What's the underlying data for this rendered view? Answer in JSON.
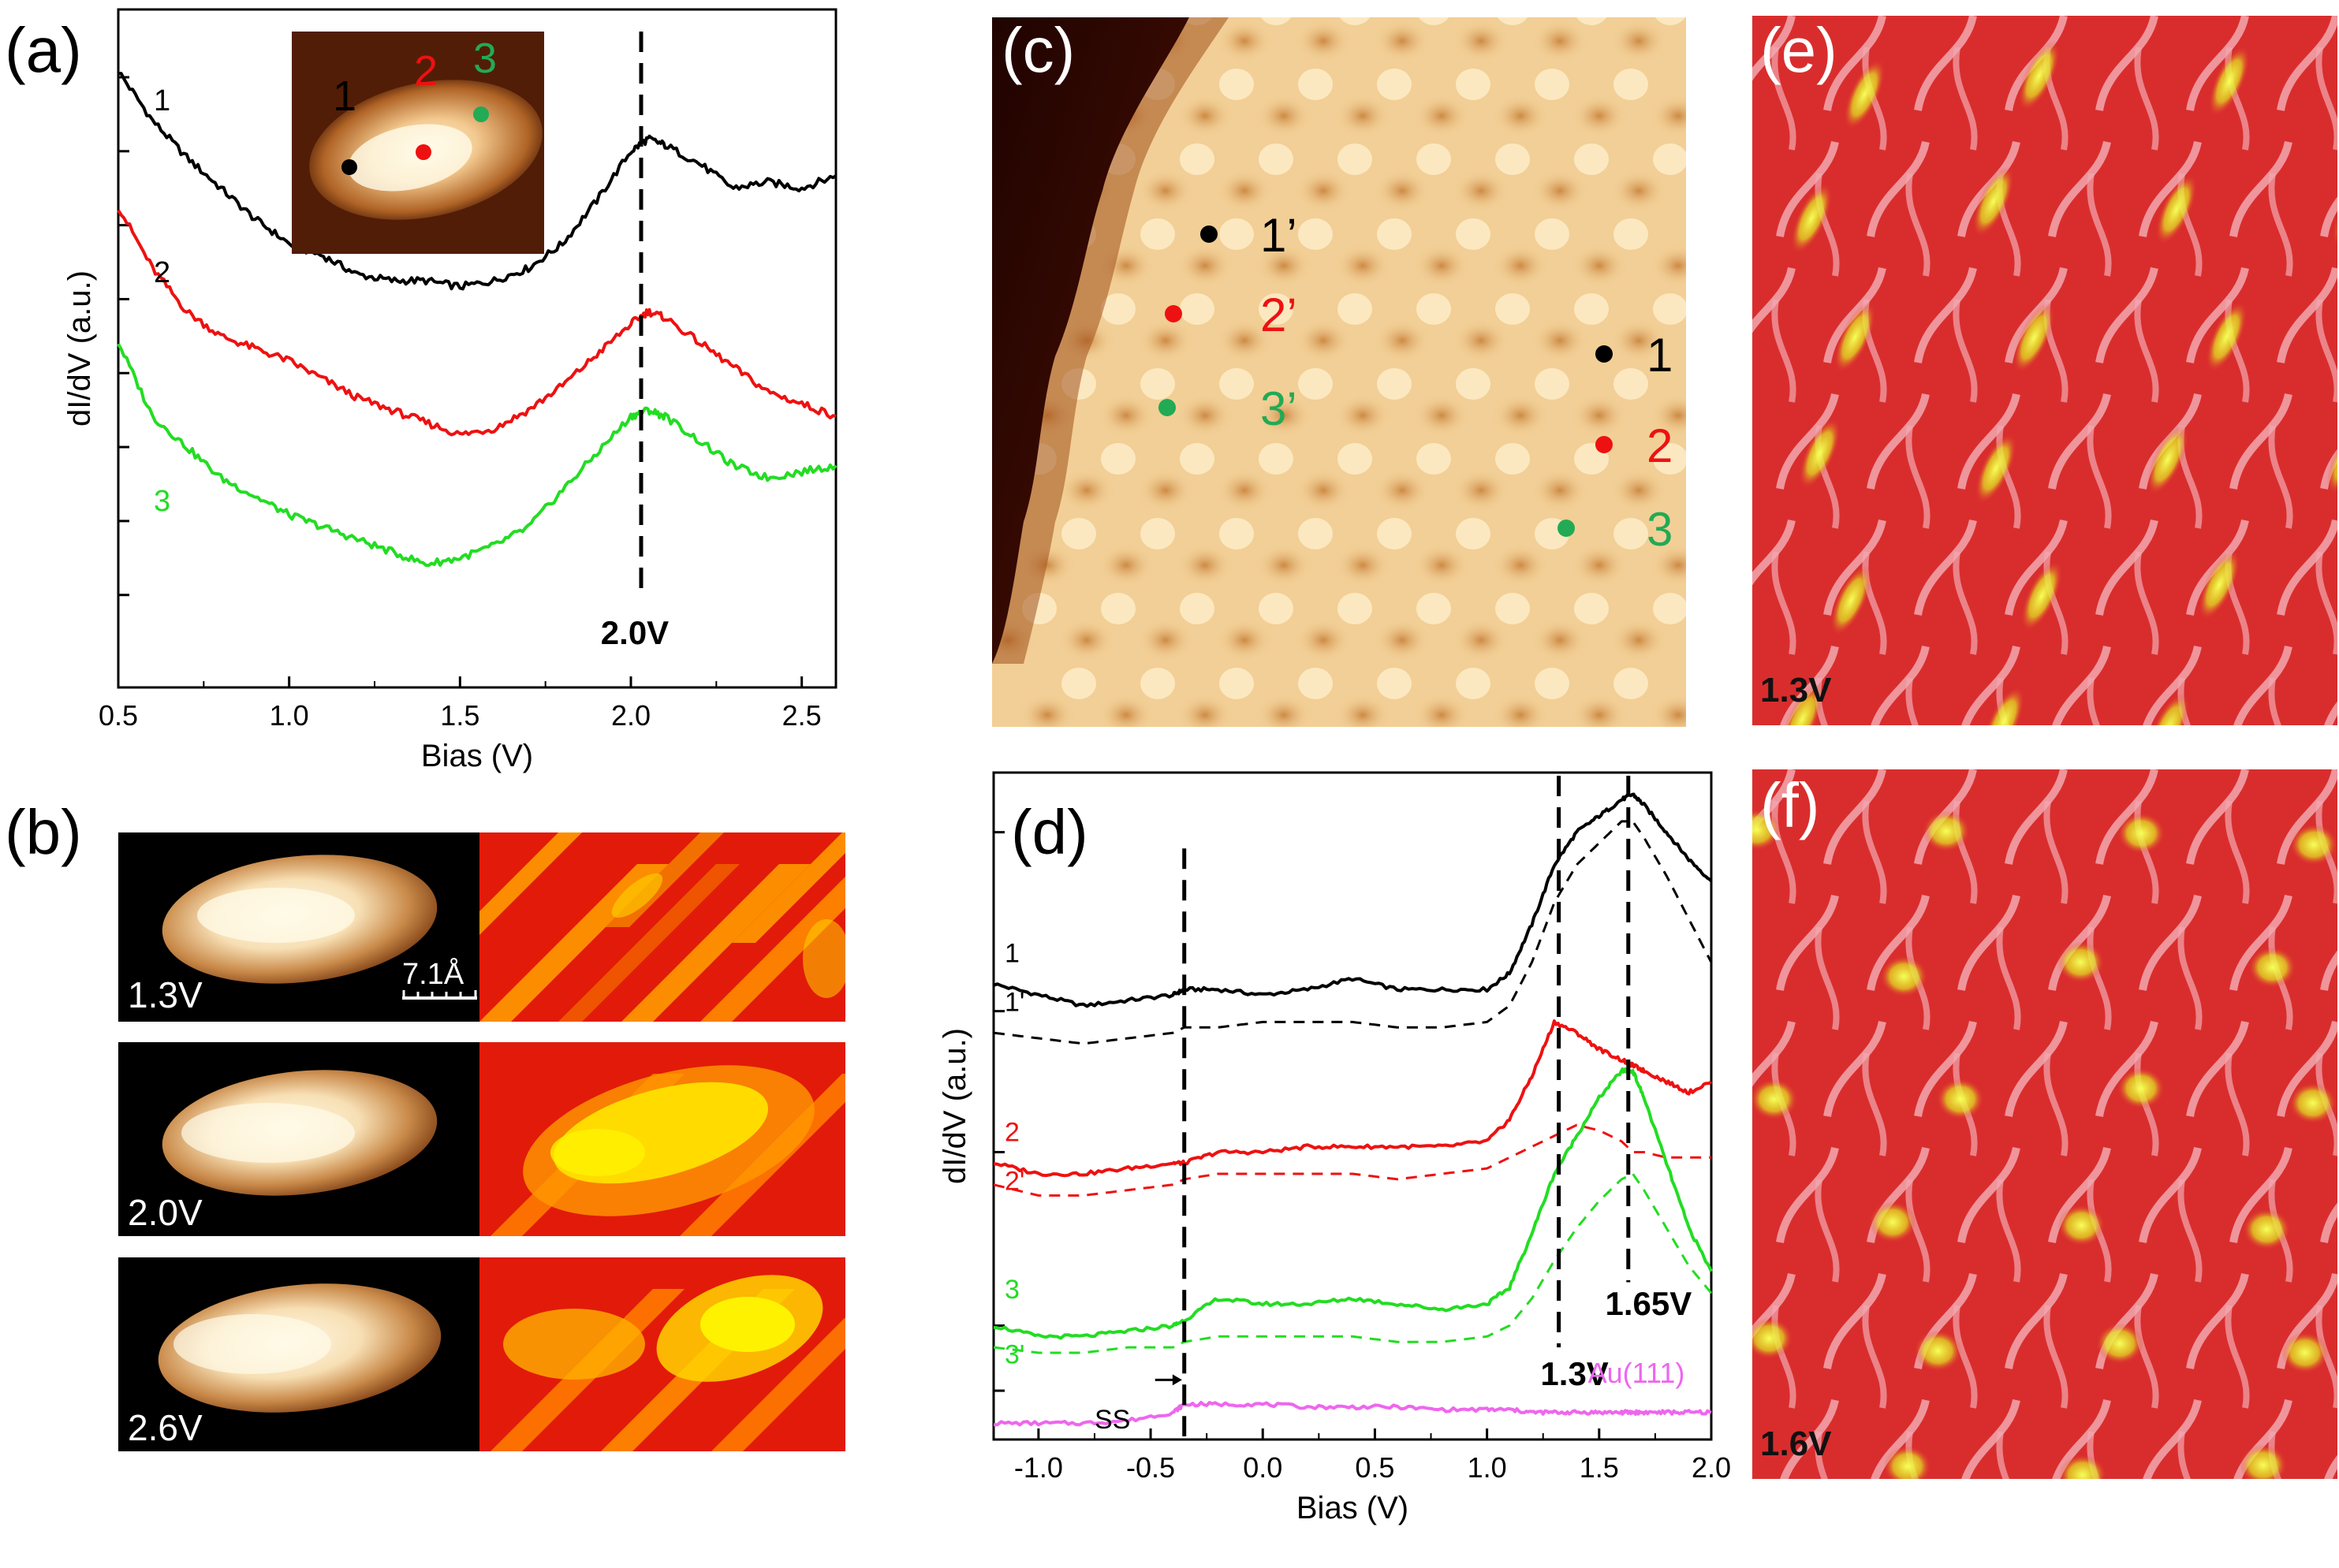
{
  "panels": {
    "a": "(a)",
    "b": "(b)",
    "c": "(c)",
    "d": "(d)",
    "e": "(e)",
    "f": "(f)"
  },
  "panel_a": {
    "curve_labels": [
      "1",
      "2",
      "3"
    ],
    "inset_labels": [
      "1",
      "2",
      "3"
    ],
    "annotation": "2.0V"
  },
  "panel_b": {
    "rows": [
      "1.3V",
      "2.0V",
      "2.6V"
    ],
    "scale_bar": "7.1Å"
  },
  "panel_c": {
    "points": [
      {
        "label": "1’",
        "color": "#000000"
      },
      {
        "label": "2’",
        "color": "#ee1111"
      },
      {
        "label": "3’",
        "color": "#22aa55"
      },
      {
        "label": "1",
        "color": "#000000"
      },
      {
        "label": "2",
        "color": "#ee1111"
      },
      {
        "label": "3",
        "color": "#22aa55"
      }
    ]
  },
  "panel_d": {
    "curve_labels": [
      "1",
      "1'",
      "2",
      "2'",
      "3",
      "3'"
    ],
    "au_label": "Au(111)",
    "ss_label": "SS",
    "annot_13": "1.3V",
    "annot_165": "1.65V"
  },
  "panel_e": {
    "bias": "1.3V"
  },
  "panel_f": {
    "bias": "1.6V"
  },
  "chart_data": [
    {
      "type": "line",
      "panel": "a",
      "title": "",
      "xlabel": "Bias (V)",
      "ylabel": "dI/dV (a.u.)",
      "xlim": [
        0.5,
        2.6
      ],
      "xticks": [
        "0.5",
        "1.0",
        "1.5",
        "2.0",
        "2.5"
      ],
      "x": [
        0.5,
        0.6,
        0.7,
        0.8,
        0.9,
        1.0,
        1.1,
        1.2,
        1.3,
        1.4,
        1.5,
        1.6,
        1.7,
        1.8,
        1.9,
        2.0,
        2.05,
        2.1,
        2.2,
        2.3,
        2.4,
        2.5,
        2.6
      ],
      "series": [
        {
          "name": "1",
          "color": "#000000",
          "values": [
            10.0,
            9.2,
            8.6,
            8.1,
            7.6,
            7.2,
            7.0,
            6.7,
            6.6,
            6.6,
            6.5,
            6.6,
            6.8,
            7.2,
            7.9,
            8.7,
            8.9,
            8.8,
            8.5,
            8.1,
            8.2,
            8.1,
            8.3
          ]
        },
        {
          "name": "2",
          "color": "#ee1111",
          "values": [
            7.8,
            6.8,
            6.1,
            5.7,
            5.5,
            5.3,
            5.0,
            4.7,
            4.5,
            4.3,
            4.1,
            4.2,
            4.5,
            4.9,
            5.4,
            5.9,
            6.1,
            6.0,
            5.6,
            5.2,
            4.8,
            4.6,
            4.4
          ]
        },
        {
          "name": "3",
          "color": "#22dd22",
          "values": [
            5.6,
            4.4,
            3.9,
            3.4,
            3.1,
            2.8,
            2.6,
            2.4,
            2.2,
            2.0,
            2.1,
            2.3,
            2.6,
            3.2,
            3.8,
            4.4,
            4.5,
            4.4,
            4.0,
            3.6,
            3.4,
            3.5,
            3.6
          ]
        }
      ]
    },
    {
      "type": "line",
      "panel": "d",
      "title": "",
      "xlabel": "Bias (V)",
      "ylabel": "dI/dV (a.u.)",
      "xlim": [
        -1.2,
        2.0
      ],
      "xticks": [
        "-1.0",
        "-0.5",
        "0.0",
        "0.5",
        "1.0",
        "1.5",
        "2.0"
      ],
      "x": [
        -1.2,
        -1.0,
        -0.8,
        -0.6,
        -0.4,
        -0.35,
        -0.2,
        0.0,
        0.2,
        0.4,
        0.6,
        0.8,
        1.0,
        1.1,
        1.2,
        1.3,
        1.4,
        1.5,
        1.6,
        1.65,
        1.7,
        1.8,
        1.9,
        2.0
      ],
      "series": [
        {
          "name": "1",
          "color": "#000000",
          "dash": false,
          "values": [
            8.1,
            7.9,
            7.7,
            7.8,
            7.9,
            8.0,
            8.0,
            7.9,
            8.0,
            8.2,
            8.0,
            8.0,
            8.0,
            8.3,
            9.2,
            10.3,
            10.9,
            11.2,
            11.5,
            11.6,
            11.4,
            10.9,
            10.4,
            10.0
          ]
        },
        {
          "name": "1'",
          "color": "#000000",
          "dash": true,
          "values": [
            7.2,
            7.1,
            7.0,
            7.1,
            7.2,
            7.3,
            7.3,
            7.4,
            7.4,
            7.4,
            7.3,
            7.3,
            7.4,
            7.7,
            8.5,
            9.6,
            10.3,
            10.7,
            11.1,
            11.1,
            10.8,
            10.1,
            9.3,
            8.5
          ]
        },
        {
          "name": "2",
          "color": "#ee1111",
          "dash": false,
          "values": [
            4.8,
            4.6,
            4.6,
            4.7,
            4.8,
            4.8,
            5.0,
            5.0,
            5.1,
            5.1,
            5.1,
            5.1,
            5.2,
            5.6,
            6.4,
            7.4,
            7.2,
            6.9,
            6.7,
            6.6,
            6.5,
            6.3,
            6.1,
            6.3
          ]
        },
        {
          "name": "2'",
          "color": "#ee1111",
          "dash": true,
          "values": [
            4.4,
            4.2,
            4.2,
            4.3,
            4.4,
            4.5,
            4.6,
            4.6,
            4.6,
            4.6,
            4.5,
            4.6,
            4.7,
            4.9,
            5.1,
            5.3,
            5.5,
            5.4,
            5.2,
            5.0,
            5.0,
            4.9,
            4.9,
            4.9
          ]
        },
        {
          "name": "3",
          "color": "#22dd22",
          "dash": false,
          "values": [
            1.8,
            1.6,
            1.6,
            1.7,
            1.8,
            1.9,
            2.3,
            2.2,
            2.2,
            2.3,
            2.2,
            2.1,
            2.2,
            2.5,
            3.5,
            4.6,
            5.3,
            6.0,
            6.5,
            6.5,
            6.0,
            4.8,
            3.6,
            2.8
          ]
        },
        {
          "name": "3'",
          "color": "#22dd22",
          "dash": true,
          "values": [
            1.4,
            1.3,
            1.3,
            1.4,
            1.4,
            1.5,
            1.6,
            1.6,
            1.6,
            1.6,
            1.5,
            1.5,
            1.6,
            1.8,
            2.3,
            3.0,
            3.6,
            4.1,
            4.5,
            4.6,
            4.3,
            3.6,
            2.9,
            2.4
          ]
        },
        {
          "name": "Au(111)",
          "color": "#ee66ee",
          "dash": false,
          "values": [
            0.0,
            0.0,
            0.0,
            0.05,
            0.2,
            0.35,
            0.35,
            0.35,
            0.3,
            0.3,
            0.3,
            0.25,
            0.25,
            0.25,
            0.2,
            0.2,
            0.2,
            0.2,
            0.2,
            0.2,
            0.2,
            0.2,
            0.2,
            0.2
          ]
        }
      ]
    }
  ]
}
